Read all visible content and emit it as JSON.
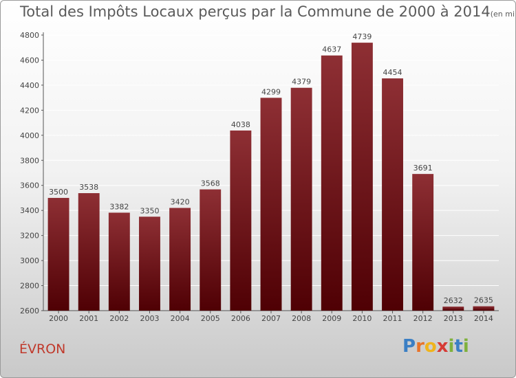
{
  "header": {
    "title": "Total des Impôts Locaux perçus par la Commune de 2000 à 2014",
    "subtitle": "(en milliers d'€)"
  },
  "footer": {
    "commune": "ÉVRON",
    "logo_text": "Proxiti",
    "logo_letters": [
      "P",
      "r",
      "o",
      "x",
      "i",
      "t",
      "i"
    ],
    "logo_colors": [
      "#3b7fc4",
      "#e8742a",
      "#f0b41c",
      "#d63a35",
      "#7fb13d",
      "#3b7fc4",
      "#7fb13d"
    ]
  },
  "colors": {
    "bar_top": "#8e2f34",
    "bar_bottom": "#4f0004",
    "text": "#444444",
    "grid": "#ffffff"
  },
  "chart_data": {
    "type": "bar",
    "title": "Total des Impôts Locaux perçus par la Commune de 2000 à 2014",
    "unit_note": "(en milliers d'€)",
    "xlabel": "",
    "ylabel": "",
    "categories": [
      "2000",
      "2001",
      "2002",
      "2003",
      "2004",
      "2005",
      "2006",
      "2007",
      "2008",
      "2009",
      "2010",
      "2011",
      "2012",
      "2013",
      "2014"
    ],
    "values": [
      3500,
      3538,
      3382,
      3350,
      3420,
      3568,
      4038,
      4299,
      4379,
      4637,
      4739,
      4454,
      3691,
      2632,
      2635
    ],
    "ylim": [
      2600,
      4800
    ],
    "yticks": [
      2600,
      2800,
      3000,
      3200,
      3400,
      3600,
      3800,
      4000,
      4200,
      4400,
      4600,
      4800
    ],
    "grid": true,
    "legend": "none"
  }
}
